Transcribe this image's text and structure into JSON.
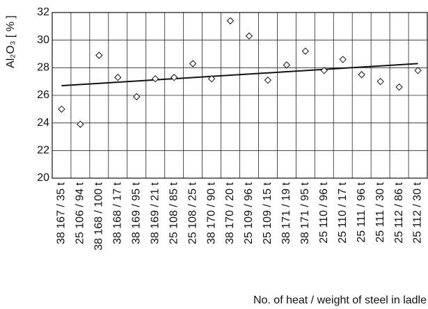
{
  "chart_data": {
    "type": "scatter",
    "y_label": "Al₂O₃ [ % ]",
    "x_label": "No. of heat / weight of steel in ladle",
    "categories": [
      "38 167 / 35 t",
      "25 106 / 94 t",
      "38 168 / 100 t",
      "38 168 / 17 t",
      "38 169 / 95 t",
      "38 169 / 21 t",
      "25 108 / 85 t",
      "25 108 / 25 t",
      "38 170 / 90 t",
      "38 170 / 20 t",
      "25 109 / 96 t",
      "25 109 / 15 t",
      "38 171 / 19 t",
      "38 171 / 95 t",
      "25 110 / 96 t",
      "25 110 / 17 t",
      "25 111 / 96 t",
      "25 111 / 30 t",
      "25 112 / 86 t",
      "25 112 / 30 t"
    ],
    "values": [
      25.0,
      23.9,
      28.9,
      27.3,
      25.9,
      27.2,
      27.3,
      28.3,
      27.2,
      31.4,
      30.3,
      27.1,
      28.2,
      29.2,
      27.8,
      28.6,
      27.5,
      27.0,
      26.6,
      27.8
    ],
    "trend": [
      26.7,
      28.3
    ],
    "color": "#111111",
    "ylim": [
      20,
      32
    ],
    "yticks": [
      20,
      22,
      24,
      26,
      28,
      30,
      32
    ],
    "grid": true
  }
}
